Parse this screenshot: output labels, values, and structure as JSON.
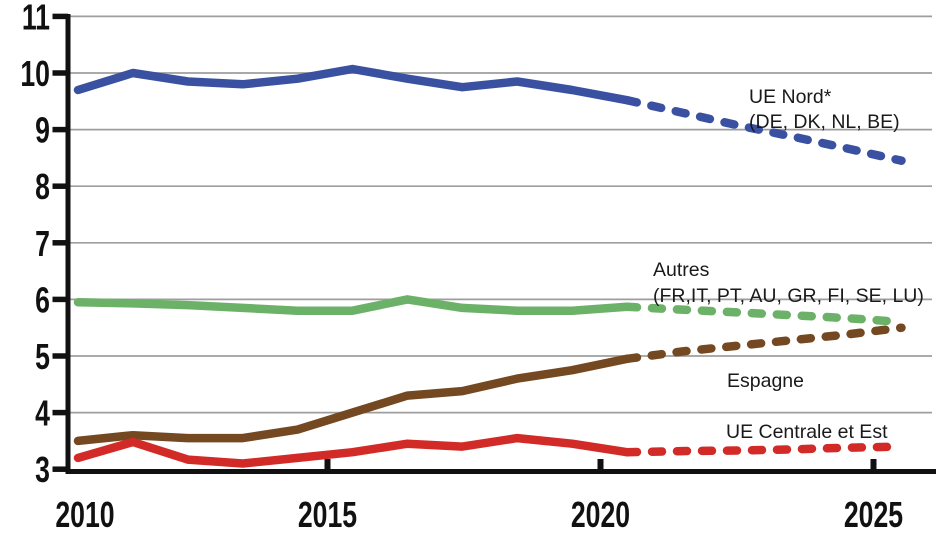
{
  "chart_data": {
    "type": "line",
    "x": [
      2010,
      2011,
      2012,
      2013,
      2014,
      2015,
      2016,
      2017,
      2018,
      2019,
      2020,
      2021,
      2022,
      2023,
      2024,
      2025
    ],
    "x_axis": {
      "ticks": [
        2010,
        2015,
        2020,
        2025
      ],
      "tick_labels": [
        "2010",
        "2015",
        "2020",
        "2025"
      ],
      "range": [
        2010,
        2025
      ]
    },
    "y_axis": {
      "ticks": [
        3,
        4,
        5,
        6,
        7,
        8,
        9,
        10,
        11
      ],
      "tick_labels": [
        "3",
        "4",
        "5",
        "6",
        "7",
        "8",
        "9",
        "10",
        "11"
      ],
      "range": [
        3,
        11
      ]
    },
    "grid": true,
    "legend_position": "inline-annotations",
    "style": {
      "solid_until_index": 10,
      "line_width": 8.5,
      "dash_pattern": "10 15",
      "grid_color": "#9E9E9E",
      "axis_color": "#111111"
    },
    "series": [
      {
        "name": "UE Nord* (DE, DK, NL, BE)",
        "color": "#3A51A2",
        "label_lines": [
          "UE Nord*",
          "(DE, DK, NL, BE)"
        ],
        "values": [
          9.7,
          10.0,
          9.85,
          9.8,
          9.9,
          10.07,
          9.9,
          9.75,
          9.85,
          9.7,
          9.52,
          9.3,
          9.08,
          8.88,
          8.67,
          8.45
        ]
      },
      {
        "name": "Autres (FR,IT, PT, AU, GR, FI, SE, LU)",
        "color": "#6CB168",
        "label_lines": [
          "Autres",
          "(FR,IT, PT, AU, GR, FI, SE, LU)"
        ],
        "values": [
          5.95,
          5.93,
          5.9,
          5.85,
          5.8,
          5.8,
          6.0,
          5.85,
          5.8,
          5.8,
          5.87,
          5.82,
          5.77,
          5.72,
          5.67,
          5.6
        ]
      },
      {
        "name": "Espagne",
        "color": "#744821",
        "label_lines": [
          "Espagne"
        ],
        "values": [
          3.5,
          3.6,
          3.55,
          3.55,
          3.7,
          4.0,
          4.3,
          4.38,
          4.6,
          4.75,
          4.95,
          5.08,
          5.18,
          5.28,
          5.38,
          5.5
        ]
      },
      {
        "name": "UE Centrale et Est",
        "color": "#D22B27",
        "label_lines": [
          "UE Centrale et Est"
        ],
        "values": [
          3.2,
          3.48,
          3.17,
          3.1,
          3.2,
          3.3,
          3.45,
          3.4,
          3.55,
          3.45,
          3.3,
          3.32,
          3.33,
          3.35,
          3.38,
          3.4
        ]
      }
    ]
  }
}
